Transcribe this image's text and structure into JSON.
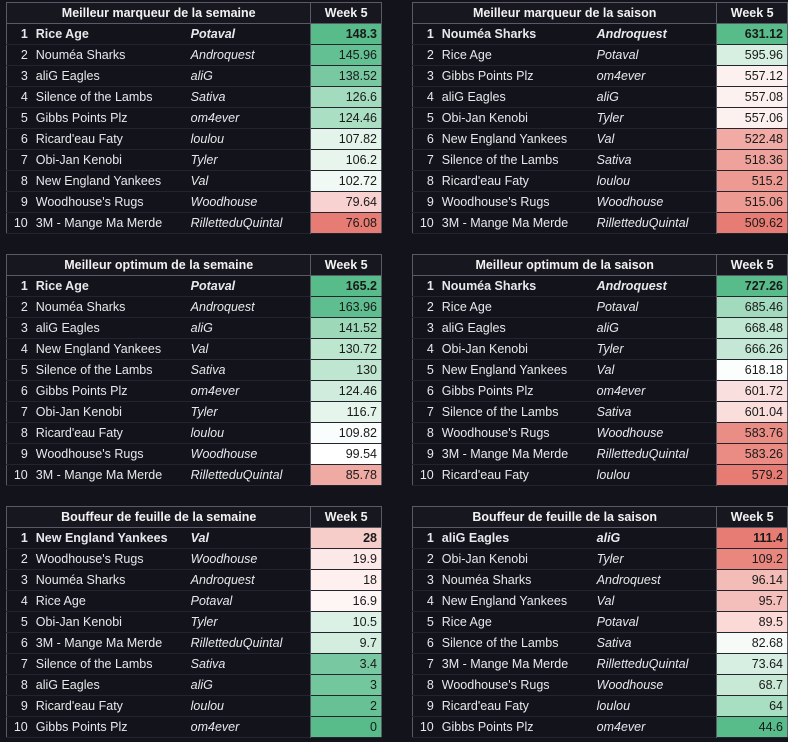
{
  "tables": [
    {
      "title": "Meilleur marqueur de la semaine",
      "week": "Week 5",
      "rows": [
        {
          "rank": "1",
          "team": "Rice Age",
          "manager": "Potaval",
          "value": "148.3",
          "color": "#57bb8a"
        },
        {
          "rank": "2",
          "team": "Nouméa Sharks",
          "manager": "Androquest",
          "value": "145.96",
          "color": "#62c092"
        },
        {
          "rank": "3",
          "team": "aliG Eagles",
          "manager": "aliG",
          "value": "138.52",
          "color": "#78c9a1"
        },
        {
          "rank": "4",
          "team": "Silence of the Lambs",
          "manager": "Sativa",
          "value": "126.6",
          "color": "#a3dbbe"
        },
        {
          "rank": "5",
          "team": "Gibbs Points Plz",
          "manager": "om4ever",
          "value": "124.46",
          "color": "#abdfc4"
        },
        {
          "rank": "6",
          "team": "Ricard'eau Faty",
          "manager": "loulou",
          "value": "107.82",
          "color": "#e3f4ea"
        },
        {
          "rank": "7",
          "team": "Obi-Jan Kenobi",
          "manager": "Tyler",
          "value": "106.2",
          "color": "#e7f5ed"
        },
        {
          "rank": "8",
          "team": "New England Yankees",
          "manager": "Val",
          "value": "102.72",
          "color": "#f0f9f4"
        },
        {
          "rank": "9",
          "team": "Woodhouse's Rugs",
          "manager": "Woodhouse",
          "value": "79.64",
          "color": "#f7d2d0"
        },
        {
          "rank": "10",
          "team": "3M - Mange Ma Merde",
          "manager": "RilletteduQuintal",
          "value": "76.08",
          "color": "#e67c73"
        }
      ]
    },
    {
      "title": "Meilleur marqueur de la saison",
      "week": "Week 5",
      "rows": [
        {
          "rank": "1",
          "team": "Nouméa Sharks",
          "manager": "Androquest",
          "value": "631.12",
          "color": "#57bb8a"
        },
        {
          "rank": "2",
          "team": "Rice Age",
          "manager": "Potaval",
          "value": "595.96",
          "color": "#d6efe1"
        },
        {
          "rank": "3",
          "team": "Gibbs Points Plz",
          "manager": "om4ever",
          "value": "557.12",
          "color": "#fdf1f0"
        },
        {
          "rank": "4",
          "team": "aliG Eagles",
          "manager": "aliG",
          "value": "557.08",
          "color": "#fdf1f0"
        },
        {
          "rank": "5",
          "team": "Obi-Jan Kenobi",
          "manager": "Tyler",
          "value": "557.06",
          "color": "#fdf1f0"
        },
        {
          "rank": "6",
          "team": "New England Yankees",
          "manager": "Val",
          "value": "522.48",
          "color": "#f1aaa4"
        },
        {
          "rank": "7",
          "team": "Silence of the Lambs",
          "manager": "Sativa",
          "value": "518.36",
          "color": "#efa29b"
        },
        {
          "rank": "8",
          "team": "Ricard'eau Faty",
          "manager": "loulou",
          "value": "515.2",
          "color": "#ed9a93"
        },
        {
          "rank": "9",
          "team": "Woodhouse's Rugs",
          "manager": "Woodhouse",
          "value": "515.06",
          "color": "#ed9a93"
        },
        {
          "rank": "10",
          "team": "3M - Mange Ma Merde",
          "manager": "RilletteduQuintal",
          "value": "509.62",
          "color": "#e67c73"
        }
      ]
    },
    {
      "title": "Meilleur optimum de la semaine",
      "week": "Week 5",
      "rows": [
        {
          "rank": "1",
          "team": "Rice Age",
          "manager": "Potaval",
          "value": "165.2",
          "color": "#57bb8a"
        },
        {
          "rank": "2",
          "team": "Nouméa Sharks",
          "manager": "Androquest",
          "value": "163.96",
          "color": "#5ebe8f"
        },
        {
          "rank": "3",
          "team": "aliG Eagles",
          "manager": "aliG",
          "value": "141.52",
          "color": "#9dd8b9"
        },
        {
          "rank": "4",
          "team": "New England Yankees",
          "manager": "Val",
          "value": "130.72",
          "color": "#bde6cf"
        },
        {
          "rank": "5",
          "team": "Silence of the Lambs",
          "manager": "Sativa",
          "value": "130",
          "color": "#bfe6d1"
        },
        {
          "rank": "6",
          "team": "Gibbs Points Plz",
          "manager": "om4ever",
          "value": "124.46",
          "color": "#cfecdc"
        },
        {
          "rank": "7",
          "team": "Obi-Jan Kenobi",
          "manager": "Tyler",
          "value": "116.7",
          "color": "#e5f5ec"
        },
        {
          "rank": "8",
          "team": "Ricard'eau Faty",
          "manager": "loulou",
          "value": "109.82",
          "color": "#f9fdfb"
        },
        {
          "rank": "9",
          "team": "Woodhouse's Rugs",
          "manager": "Woodhouse",
          "value": "99.54",
          "color": "#ffffff"
        },
        {
          "rank": "10",
          "team": "3M - Mange Ma Merde",
          "manager": "RilletteduQuintal",
          "value": "85.78",
          "color": "#f0aaa4"
        }
      ]
    },
    {
      "title": "Meilleur optimum de la saison",
      "week": "Week 5",
      "rows": [
        {
          "rank": "1",
          "team": "Nouméa Sharks",
          "manager": "Androquest",
          "value": "727.26",
          "color": "#57bb8a"
        },
        {
          "rank": "2",
          "team": "Rice Age",
          "manager": "Potaval",
          "value": "685.46",
          "color": "#a2dabd"
        },
        {
          "rank": "3",
          "team": "aliG Eagles",
          "manager": "aliG",
          "value": "668.48",
          "color": "#c0e7d2"
        },
        {
          "rank": "4",
          "team": "Obi-Jan Kenobi",
          "manager": "Tyler",
          "value": "666.26",
          "color": "#c4e8d5"
        },
        {
          "rank": "5",
          "team": "New England Yankees",
          "manager": "Val",
          "value": "618.18",
          "color": "#fbfefc"
        },
        {
          "rank": "6",
          "team": "Gibbs Points Plz",
          "manager": "om4ever",
          "value": "601.72",
          "color": "#f9e0de"
        },
        {
          "rank": "7",
          "team": "Silence of the Lambs",
          "manager": "Sativa",
          "value": "601.04",
          "color": "#f9dedc"
        },
        {
          "rank": "8",
          "team": "Woodhouse's Rugs",
          "manager": "Woodhouse",
          "value": "583.76",
          "color": "#ea8d85"
        },
        {
          "rank": "9",
          "team": "3M - Mange Ma Merde",
          "manager": "RilletteduQuintal",
          "value": "583.26",
          "color": "#ea8c84"
        },
        {
          "rank": "10",
          "team": "Ricard'eau Faty",
          "manager": "loulou",
          "value": "579.2",
          "color": "#e67c73"
        }
      ]
    },
    {
      "title": "Bouffeur de feuille de la semaine",
      "week": "Week 5",
      "rows": [
        {
          "rank": "1",
          "team": "New England Yankees",
          "manager": "Val",
          "value": "28",
          "color": "#f6cdc9"
        },
        {
          "rank": "2",
          "team": "Woodhouse's Rugs",
          "manager": "Woodhouse",
          "value": "19.9",
          "color": "#fce9e7"
        },
        {
          "rank": "3",
          "team": "Nouméa Sharks",
          "manager": "Androquest",
          "value": "18",
          "color": "#fdf0ef"
        },
        {
          "rank": "4",
          "team": "Rice Age",
          "manager": "Potaval",
          "value": "16.9",
          "color": "#fef6f5"
        },
        {
          "rank": "5",
          "team": "Obi-Jan Kenobi",
          "manager": "Tyler",
          "value": "10.5",
          "color": "#dbf1e5"
        },
        {
          "rank": "6",
          "team": "3M - Mange Ma Merde",
          "manager": "RilletteduQuintal",
          "value": "9.7",
          "color": "#d3eedf"
        },
        {
          "rank": "7",
          "team": "Silence of the Lambs",
          "manager": "Sativa",
          "value": "3.4",
          "color": "#78c9a1"
        },
        {
          "rank": "8",
          "team": "aliG Eagles",
          "manager": "aliG",
          "value": "3",
          "color": "#72c79c"
        },
        {
          "rank": "9",
          "team": "Ricard'eau Faty",
          "manager": "loulou",
          "value": "2",
          "color": "#66c295"
        },
        {
          "rank": "10",
          "team": "Gibbs Points Plz",
          "manager": "om4ever",
          "value": "0",
          "color": "#57bb8a"
        }
      ]
    },
    {
      "title": "Bouffeur de feuille de la saison",
      "week": "Week 5",
      "rows": [
        {
          "rank": "1",
          "team": "aliG Eagles",
          "manager": "aliG",
          "value": "111.4",
          "color": "#e67c73"
        },
        {
          "rank": "2",
          "team": "Obi-Jan Kenobi",
          "manager": "Tyler",
          "value": "109.2",
          "color": "#e9877f"
        },
        {
          "rank": "3",
          "team": "Nouméa Sharks",
          "manager": "Androquest",
          "value": "96.14",
          "color": "#f3bcb7"
        },
        {
          "rank": "4",
          "team": "New England Yankees",
          "manager": "Val",
          "value": "95.7",
          "color": "#f4bfba"
        },
        {
          "rank": "5",
          "team": "Rice Age",
          "manager": "Potaval",
          "value": "89.5",
          "color": "#fad9d6"
        },
        {
          "rank": "6",
          "team": "Silence of the Lambs",
          "manager": "Sativa",
          "value": "82.68",
          "color": "#f6fbf8"
        },
        {
          "rank": "7",
          "team": "3M - Mange Ma Merde",
          "manager": "RilletteduQuintal",
          "value": "73.64",
          "color": "#d7efe2"
        },
        {
          "rank": "8",
          "team": "Woodhouse's Rugs",
          "manager": "Woodhouse",
          "value": "68.7",
          "color": "#c7e9d6"
        },
        {
          "rank": "9",
          "team": "Ricard'eau Faty",
          "manager": "loulou",
          "value": "64",
          "color": "#a8dec1"
        },
        {
          "rank": "10",
          "team": "Gibbs Points Plz",
          "manager": "om4ever",
          "value": "44.6",
          "color": "#57bb8a"
        }
      ]
    }
  ]
}
